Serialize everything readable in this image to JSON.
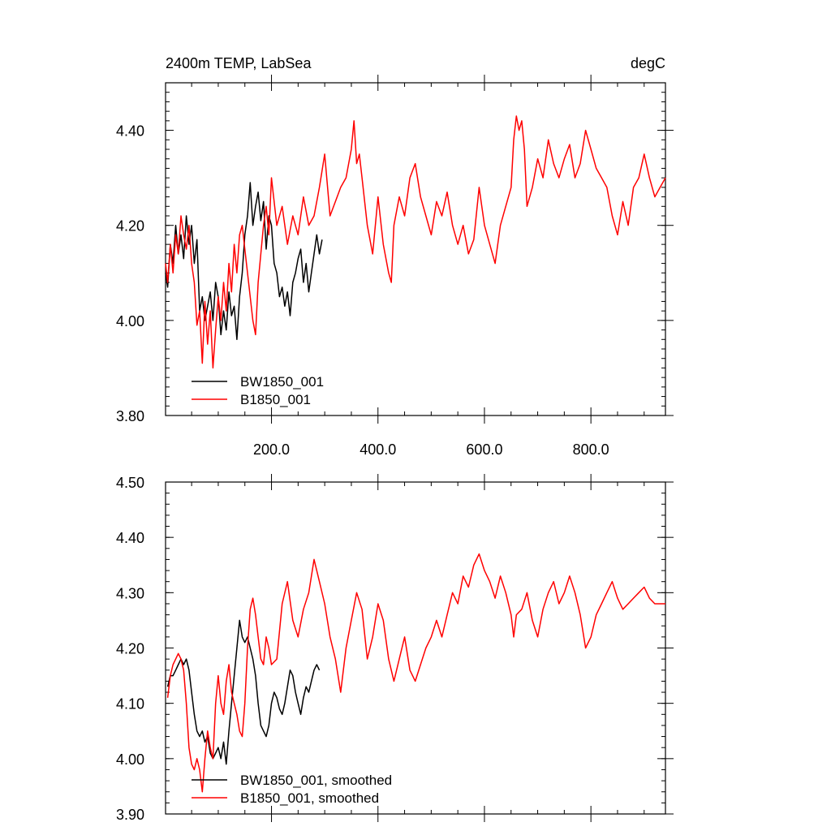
{
  "chart_data": [
    {
      "type": "line",
      "title_left": "2400m TEMP, LabSea",
      "title_right": "degC",
      "xlim": [
        1,
        940
      ],
      "ylim": [
        3.8,
        4.5
      ],
      "x_ticks": [
        200,
        400,
        600,
        800
      ],
      "x_tick_labels": [
        "200.0",
        "400.0",
        "600.0",
        "800.0"
      ],
      "y_ticks": [
        3.8,
        4.0,
        4.2,
        4.4
      ],
      "y_tick_labels": [
        "3.80",
        "4.00",
        "4.20",
        "4.40"
      ],
      "legend": [
        "BW1850_001",
        "B1850_001"
      ],
      "series": [
        {
          "name": "BW1850_001",
          "color": "#000000",
          "x": [
            1,
            5,
            10,
            15,
            20,
            25,
            30,
            35,
            40,
            45,
            50,
            55,
            60,
            65,
            70,
            75,
            80,
            85,
            90,
            95,
            100,
            105,
            110,
            115,
            120,
            125,
            130,
            135,
            140,
            145,
            150,
            155,
            160,
            165,
            170,
            175,
            180,
            185,
            190,
            195,
            200,
            205,
            210,
            215,
            220,
            225,
            230,
            235,
            240,
            245,
            250,
            255,
            260,
            265,
            270,
            275,
            280,
            285,
            290,
            295
          ],
          "y": [
            4.1,
            4.07,
            4.16,
            4.12,
            4.2,
            4.14,
            4.18,
            4.13,
            4.22,
            4.16,
            4.2,
            4.12,
            4.17,
            4.02,
            4.05,
            4.0,
            4.03,
            4.06,
            4.0,
            4.08,
            4.05,
            3.97,
            4.02,
            3.98,
            4.06,
            4.01,
            4.03,
            3.96,
            4.05,
            4.1,
            4.18,
            4.22,
            4.29,
            4.2,
            4.24,
            4.27,
            4.21,
            4.25,
            4.15,
            4.22,
            4.2,
            4.12,
            4.1,
            4.05,
            4.07,
            4.03,
            4.06,
            4.01,
            4.08,
            4.1,
            4.13,
            4.15,
            4.08,
            4.12,
            4.06,
            4.1,
            4.14,
            4.18,
            4.14,
            4.17
          ]
        },
        {
          "name": "B1850_001",
          "color": "#ff0000",
          "x": [
            1,
            5,
            10,
            15,
            20,
            25,
            30,
            35,
            40,
            45,
            50,
            55,
            60,
            65,
            70,
            75,
            80,
            85,
            90,
            95,
            100,
            105,
            110,
            115,
            120,
            125,
            130,
            135,
            140,
            145,
            150,
            155,
            160,
            165,
            170,
            175,
            180,
            185,
            190,
            195,
            200,
            210,
            220,
            230,
            240,
            250,
            260,
            270,
            280,
            290,
            300,
            310,
            320,
            330,
            340,
            350,
            355,
            360,
            365,
            370,
            380,
            390,
            400,
            410,
            420,
            425,
            430,
            440,
            450,
            460,
            470,
            480,
            490,
            500,
            510,
            520,
            530,
            540,
            550,
            560,
            570,
            580,
            590,
            600,
            610,
            620,
            630,
            640,
            650,
            655,
            660,
            665,
            670,
            675,
            680,
            690,
            700,
            710,
            720,
            730,
            740,
            750,
            760,
            770,
            780,
            790,
            800,
            810,
            820,
            830,
            840,
            850,
            860,
            870,
            880,
            890,
            900,
            910,
            920,
            930,
            940
          ],
          "y": [
            4.12,
            4.08,
            4.16,
            4.1,
            4.18,
            4.14,
            4.22,
            4.18,
            4.15,
            4.2,
            4.12,
            4.08,
            3.99,
            4.02,
            3.91,
            4.04,
            3.95,
            4.02,
            3.9,
            3.98,
            4.05,
            4.0,
            4.08,
            4.02,
            4.12,
            4.06,
            4.16,
            4.1,
            4.18,
            4.2,
            4.15,
            4.1,
            4.05,
            4.0,
            3.97,
            4.08,
            4.14,
            4.2,
            4.24,
            4.18,
            4.3,
            4.2,
            4.24,
            4.16,
            4.22,
            4.18,
            4.26,
            4.2,
            4.22,
            4.28,
            4.35,
            4.22,
            4.25,
            4.28,
            4.3,
            4.36,
            4.42,
            4.33,
            4.35,
            4.3,
            4.2,
            4.14,
            4.26,
            4.16,
            4.1,
            4.08,
            4.2,
            4.26,
            4.22,
            4.3,
            4.33,
            4.26,
            4.22,
            4.18,
            4.25,
            4.22,
            4.27,
            4.2,
            4.16,
            4.2,
            4.14,
            4.17,
            4.28,
            4.2,
            4.16,
            4.12,
            4.2,
            4.24,
            4.28,
            4.38,
            4.43,
            4.4,
            4.42,
            4.36,
            4.24,
            4.28,
            4.34,
            4.3,
            4.38,
            4.33,
            4.3,
            4.34,
            4.37,
            4.3,
            4.33,
            4.4,
            4.36,
            4.32,
            4.3,
            4.28,
            4.22,
            4.18,
            4.25,
            4.2,
            4.28,
            4.3,
            4.35,
            4.3,
            4.26,
            4.28,
            4.3
          ]
        }
      ]
    },
    {
      "type": "line",
      "xlim": [
        1,
        940
      ],
      "ylim": [
        3.9,
        4.5
      ],
      "x_ticks": [
        200,
        400,
        600,
        800
      ],
      "y_ticks": [
        3.9,
        4.0,
        4.1,
        4.2,
        4.3,
        4.4,
        4.5
      ],
      "y_tick_labels": [
        "3.90",
        "4.00",
        "4.10",
        "4.20",
        "4.30",
        "4.40",
        "4.50"
      ],
      "legend": [
        "BW1850_001, smoothed",
        "B1850_001, smoothed"
      ],
      "series": [
        {
          "name": "BW1850_001, smoothed",
          "color": "#000000",
          "x": [
            5,
            10,
            15,
            20,
            25,
            30,
            35,
            40,
            45,
            50,
            55,
            60,
            65,
            70,
            75,
            80,
            85,
            90,
            95,
            100,
            105,
            110,
            115,
            120,
            125,
            130,
            135,
            140,
            145,
            150,
            155,
            160,
            165,
            170,
            175,
            180,
            185,
            190,
            195,
            200,
            205,
            210,
            215,
            220,
            225,
            230,
            235,
            240,
            245,
            250,
            255,
            260,
            265,
            270,
            275,
            280,
            285,
            290
          ],
          "y": [
            4.13,
            4.15,
            4.15,
            4.16,
            4.17,
            4.18,
            4.17,
            4.18,
            4.16,
            4.12,
            4.08,
            4.05,
            4.04,
            4.05,
            4.03,
            4.04,
            4.01,
            4.0,
            4.01,
            4.02,
            4.0,
            4.03,
            3.99,
            4.05,
            4.1,
            4.15,
            4.2,
            4.25,
            4.22,
            4.21,
            4.22,
            4.2,
            4.18,
            4.15,
            4.1,
            4.06,
            4.05,
            4.04,
            4.06,
            4.1,
            4.12,
            4.11,
            4.09,
            4.08,
            4.1,
            4.13,
            4.16,
            4.15,
            4.12,
            4.1,
            4.08,
            4.11,
            4.13,
            4.12,
            4.14,
            4.16,
            4.17,
            4.16
          ]
        },
        {
          "name": "B1850_001, smoothed",
          "color": "#ff0000",
          "x": [
            5,
            10,
            15,
            20,
            25,
            30,
            35,
            40,
            45,
            50,
            55,
            60,
            65,
            70,
            75,
            80,
            85,
            90,
            95,
            100,
            105,
            110,
            115,
            120,
            125,
            130,
            135,
            140,
            145,
            150,
            155,
            160,
            165,
            170,
            175,
            180,
            185,
            190,
            195,
            200,
            210,
            220,
            230,
            240,
            250,
            260,
            270,
            280,
            290,
            300,
            310,
            320,
            330,
            340,
            350,
            360,
            370,
            380,
            390,
            400,
            410,
            420,
            430,
            440,
            450,
            460,
            470,
            480,
            490,
            500,
            510,
            520,
            530,
            540,
            550,
            560,
            570,
            580,
            590,
            600,
            610,
            620,
            630,
            640,
            650,
            655,
            660,
            670,
            680,
            690,
            700,
            710,
            720,
            730,
            740,
            750,
            760,
            770,
            780,
            790,
            800,
            810,
            820,
            830,
            840,
            850,
            860,
            870,
            880,
            890,
            900,
            910,
            920,
            930,
            940
          ],
          "y": [
            4.11,
            4.15,
            4.17,
            4.18,
            4.19,
            4.18,
            4.16,
            4.1,
            4.02,
            3.99,
            3.98,
            4.0,
            3.98,
            3.94,
            4.0,
            4.05,
            4.02,
            4.0,
            4.1,
            4.15,
            4.1,
            4.08,
            4.14,
            4.17,
            4.12,
            4.1,
            4.08,
            4.05,
            4.04,
            4.1,
            4.2,
            4.27,
            4.29,
            4.26,
            4.22,
            4.18,
            4.17,
            4.22,
            4.2,
            4.17,
            4.18,
            4.28,
            4.32,
            4.25,
            4.22,
            4.27,
            4.3,
            4.36,
            4.32,
            4.28,
            4.22,
            4.18,
            4.12,
            4.2,
            4.25,
            4.3,
            4.27,
            4.18,
            4.22,
            4.28,
            4.25,
            4.18,
            4.14,
            4.18,
            4.22,
            4.16,
            4.14,
            4.17,
            4.2,
            4.22,
            4.25,
            4.22,
            4.26,
            4.3,
            4.28,
            4.33,
            4.31,
            4.35,
            4.37,
            4.34,
            4.32,
            4.29,
            4.33,
            4.3,
            4.26,
            4.22,
            4.26,
            4.27,
            4.3,
            4.25,
            4.22,
            4.27,
            4.3,
            4.32,
            4.28,
            4.3,
            4.33,
            4.3,
            4.26,
            4.2,
            4.22,
            4.26,
            4.28,
            4.3,
            4.32,
            4.29,
            4.27,
            4.28,
            4.29,
            4.3,
            4.31,
            4.29,
            4.28,
            4.28,
            4.28
          ]
        }
      ]
    }
  ]
}
